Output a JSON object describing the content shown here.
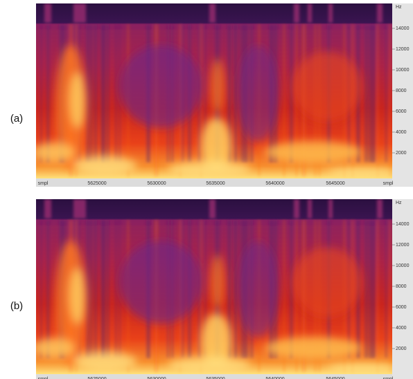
{
  "panels": [
    {
      "label": "(a)",
      "y_ticks": [
        "Hz",
        "14000",
        "12000",
        "10000",
        "8000",
        "6000",
        "4000",
        "2000"
      ],
      "x_ticks": [
        "smpl",
        "5625000",
        "5630000",
        "5635000",
        "5640000",
        "5645000",
        "smpl"
      ]
    },
    {
      "label": "(b)",
      "y_ticks": [
        "Hz",
        "14000",
        "12000",
        "10000",
        "8000",
        "6000",
        "4000",
        "2000"
      ],
      "x_ticks": [
        "smpl",
        "5625000",
        "5630000",
        "5635000",
        "5640000",
        "5645000",
        "smpl"
      ]
    }
  ]
}
